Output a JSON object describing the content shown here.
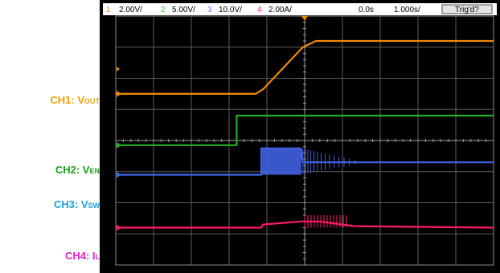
{
  "labels": {
    "ch1": {
      "main": "CH1: V",
      "sub": "OUT",
      "color": "#f0a000"
    },
    "ch2": {
      "main": "CH2: V",
      "sub": "EN",
      "color": "#1aa01a"
    },
    "ch3": {
      "main": "CH3: V",
      "sub": "SW",
      "color": "#1ea0e6"
    },
    "ch4": {
      "main": "CH4: I",
      "sub": "L",
      "color": "#e020d0"
    }
  },
  "header": {
    "channels": [
      {
        "num": "1",
        "scale": "2.00V/",
        "color": "#f09000"
      },
      {
        "num": "2",
        "scale": "5.00V/",
        "color": "#30c030"
      },
      {
        "num": "3",
        "scale": "10.0V/",
        "color": "#5a78e8"
      },
      {
        "num": "4",
        "scale": "2.00A/",
        "color": "#ff2a8a"
      }
    ],
    "time_offset": "0.0s",
    "timebase": "1.000s/",
    "trigger_status": "Trig'd?"
  },
  "chart_data": {
    "type": "line",
    "divisions": {
      "x": 10,
      "y": 8
    },
    "x_unit": "div",
    "series": [
      {
        "name": "1",
        "color": "#f08a00",
        "points": [
          [
            0,
            5.5
          ],
          [
            3.7,
            5.5
          ],
          [
            3.9,
            5.65
          ],
          [
            4.95,
            7.0
          ],
          [
            5.3,
            7.2
          ],
          [
            10,
            7.2
          ]
        ]
      },
      {
        "name": "2",
        "color": "#22b022",
        "points": [
          [
            0,
            3.85
          ],
          [
            3.2,
            3.85
          ],
          [
            3.2,
            4.8
          ],
          [
            10,
            4.8
          ]
        ]
      },
      {
        "name": "3",
        "color": "#4060e0",
        "points": [
          [
            0,
            2.9
          ],
          [
            3.85,
            2.9
          ],
          [
            3.85,
            3.75
          ],
          [
            4.9,
            3.75
          ],
          [
            4.95,
            3.3
          ],
          [
            6.6,
            3.3
          ],
          [
            10,
            3.3
          ]
        ],
        "burst": {
          "start": 3.85,
          "end": 6.6
        }
      },
      {
        "name": "4",
        "color": "#ff1a6a",
        "points": [
          [
            0,
            1.2
          ],
          [
            3.85,
            1.2
          ],
          [
            3.9,
            1.3
          ],
          [
            4.9,
            1.4
          ],
          [
            5.4,
            1.4
          ],
          [
            6.3,
            1.25
          ],
          [
            10,
            1.2
          ]
        ]
      }
    ]
  }
}
